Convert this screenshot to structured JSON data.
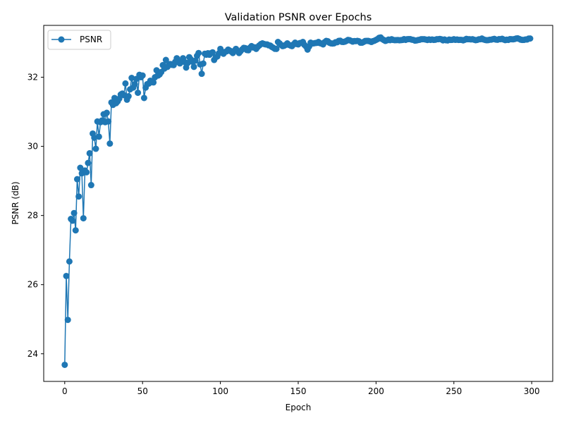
{
  "chart_data": {
    "type": "line",
    "title": "Validation PSNR over Epochs",
    "xlabel": "Epoch",
    "ylabel": "PSNR (dB)",
    "xlim": [
      -13.5,
      313.5
    ],
    "ylim": [
      23.2,
      33.5
    ],
    "xticks": [
      0,
      50,
      100,
      150,
      200,
      250,
      300
    ],
    "yticks": [
      24,
      26,
      28,
      30,
      32
    ],
    "grid": false,
    "legend": "top-left",
    "series": [
      {
        "name": "PSNR",
        "color": "#1f77b4",
        "marker": "circle",
        "anchors": [
          [
            0,
            23.68
          ],
          [
            1,
            26.25
          ],
          [
            2,
            24.98
          ],
          [
            3,
            26.67
          ],
          [
            4,
            27.9
          ],
          [
            5,
            27.85
          ],
          [
            6,
            28.07
          ],
          [
            7,
            27.57
          ],
          [
            8,
            29.05
          ],
          [
            9,
            28.55
          ],
          [
            10,
            29.38
          ],
          [
            11,
            29.22
          ],
          [
            12,
            27.92
          ],
          [
            13,
            29.3
          ],
          [
            14,
            29.25
          ],
          [
            15,
            29.52
          ],
          [
            16,
            29.8
          ],
          [
            17,
            28.88
          ],
          [
            18,
            30.37
          ],
          [
            19,
            30.25
          ],
          [
            20,
            29.93
          ],
          [
            21,
            30.72
          ],
          [
            22,
            30.28
          ],
          [
            23,
            30.7
          ],
          [
            24,
            30.75
          ],
          [
            25,
            30.93
          ],
          [
            26,
            30.7
          ],
          [
            27,
            30.97
          ],
          [
            28,
            30.72
          ],
          [
            29,
            30.08
          ],
          [
            30,
            31.27
          ],
          [
            31,
            31.2
          ],
          [
            32,
            31.4
          ],
          [
            33,
            31.25
          ],
          [
            34,
            31.3
          ],
          [
            35,
            31.38
          ],
          [
            36,
            31.5
          ],
          [
            38,
            31.48
          ],
          [
            39,
            31.82
          ],
          [
            40,
            31.35
          ],
          [
            41,
            31.45
          ],
          [
            42,
            31.65
          ],
          [
            43,
            31.98
          ],
          [
            44,
            31.7
          ],
          [
            45,
            31.8
          ],
          [
            46,
            31.95
          ],
          [
            47,
            31.55
          ],
          [
            48,
            32.07
          ],
          [
            49,
            32.0
          ],
          [
            50,
            32.05
          ],
          [
            51,
            31.4
          ],
          [
            52,
            31.7
          ],
          [
            53,
            31.8
          ],
          [
            55,
            31.9
          ],
          [
            57,
            31.85
          ],
          [
            58,
            32.0
          ],
          [
            59,
            32.2
          ],
          [
            60,
            32.05
          ],
          [
            62,
            32.15
          ],
          [
            63,
            32.35
          ],
          [
            64,
            32.25
          ],
          [
            65,
            32.5
          ],
          [
            66,
            32.3
          ],
          [
            68,
            32.38
          ],
          [
            70,
            32.35
          ],
          [
            72,
            32.55
          ],
          [
            74,
            32.4
          ],
          [
            76,
            32.55
          ],
          [
            78,
            32.28
          ],
          [
            80,
            32.58
          ],
          [
            82,
            32.45
          ],
          [
            83,
            32.3
          ],
          [
            85,
            32.62
          ],
          [
            86,
            32.7
          ],
          [
            88,
            32.1
          ],
          [
            90,
            32.68
          ],
          [
            93,
            32.65
          ],
          [
            95,
            32.72
          ],
          [
            96,
            32.5
          ],
          [
            98,
            32.6
          ],
          [
            100,
            32.82
          ],
          [
            102,
            32.68
          ],
          [
            105,
            32.8
          ],
          [
            108,
            32.7
          ],
          [
            110,
            32.82
          ],
          [
            112,
            32.7
          ],
          [
            115,
            32.85
          ],
          [
            118,
            32.78
          ],
          [
            120,
            32.9
          ],
          [
            123,
            32.82
          ],
          [
            125,
            32.92
          ],
          [
            127,
            32.98
          ],
          [
            130,
            32.95
          ],
          [
            133,
            32.88
          ],
          [
            136,
            32.82
          ],
          [
            137,
            33.02
          ],
          [
            140,
            32.9
          ],
          [
            143,
            32.98
          ],
          [
            146,
            32.9
          ],
          [
            148,
            33.0
          ],
          [
            150,
            32.95
          ],
          [
            153,
            33.02
          ],
          [
            156,
            32.8
          ],
          [
            158,
            33.0
          ],
          [
            160,
            32.98
          ],
          [
            163,
            33.02
          ],
          [
            166,
            32.95
          ],
          [
            168,
            33.05
          ],
          [
            170,
            33.0
          ],
          [
            173,
            32.98
          ],
          [
            176,
            33.05
          ],
          [
            179,
            33.02
          ],
          [
            182,
            33.08
          ],
          [
            185,
            33.03
          ],
          [
            188,
            33.05
          ],
          [
            191,
            33.0
          ],
          [
            194,
            33.05
          ],
          [
            197,
            33.02
          ],
          [
            200,
            33.08
          ],
          [
            203,
            33.15
          ],
          [
            206,
            33.05
          ],
          [
            210,
            33.1
          ],
          [
            215,
            33.07
          ],
          [
            220,
            33.1
          ],
          [
            225,
            33.06
          ],
          [
            230,
            33.1
          ],
          [
            235,
            33.08
          ],
          [
            240,
            33.1
          ],
          [
            245,
            33.07
          ],
          [
            250,
            33.1
          ],
          [
            255,
            33.08
          ],
          [
            260,
            33.1
          ],
          [
            265,
            33.08
          ],
          [
            268,
            33.12
          ],
          [
            270,
            33.08
          ],
          [
            275,
            33.1
          ],
          [
            280,
            33.1
          ],
          [
            285,
            33.08
          ],
          [
            290,
            33.12
          ],
          [
            295,
            33.08
          ],
          [
            299,
            33.12
          ]
        ]
      }
    ]
  }
}
